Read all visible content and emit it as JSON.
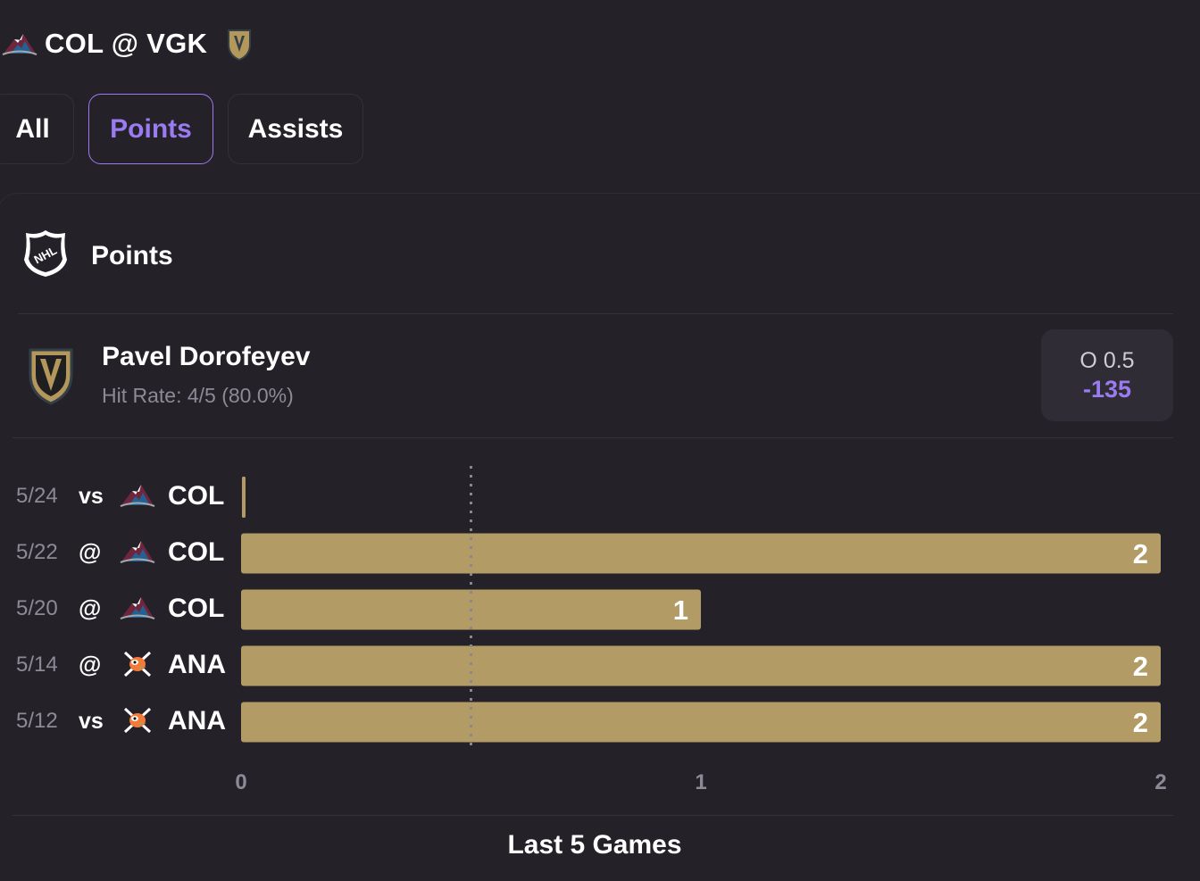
{
  "header": {
    "away_team_icon": "avalanche-logo-icon",
    "matchup": "COL @ VGK",
    "home_team_icon": "golden-knights-logo-icon"
  },
  "tabs": [
    {
      "label": "All",
      "active": false
    },
    {
      "label": "Points",
      "active": true
    },
    {
      "label": "Assists",
      "active": false
    }
  ],
  "section": {
    "league_icon": "nhl-shield-icon",
    "title": "Points"
  },
  "player": {
    "team_icon": "golden-knights-logo-icon",
    "name": "Pavel Dorofeyev",
    "hit_rate": "Hit Rate: 4/5 (80.0%)",
    "odds_line": "O 0.5",
    "odds_price": "-135"
  },
  "games": [
    {
      "date": "5/24",
      "location": "vs",
      "opponent": "COL",
      "opponent_icon": "avalanche-logo-icon"
    },
    {
      "date": "5/22",
      "location": "@",
      "opponent": "COL",
      "opponent_icon": "avalanche-logo-icon"
    },
    {
      "date": "5/20",
      "location": "@",
      "opponent": "COL",
      "opponent_icon": "avalanche-logo-icon"
    },
    {
      "date": "5/14",
      "location": "@",
      "opponent": "ANA",
      "opponent_icon": "ducks-logo-icon"
    },
    {
      "date": "5/12",
      "location": "vs",
      "opponent": "ANA",
      "opponent_icon": "ducks-logo-icon"
    }
  ],
  "chart_data": {
    "type": "bar",
    "orientation": "horizontal",
    "categories": [
      "5/24",
      "5/22",
      "5/20",
      "5/14",
      "5/12"
    ],
    "values": [
      0,
      2,
      1,
      2,
      2
    ],
    "data_labels": [
      "",
      "2",
      "1",
      "2",
      "2"
    ],
    "x_ticks": [
      "0",
      "1",
      "2"
    ],
    "xlim": [
      0,
      2
    ],
    "threshold_line": 0.5,
    "bar_color": "#b39b65",
    "xlabel": "Last 5 Games"
  },
  "colors": {
    "accent": "#9b7cf0",
    "bar": "#b39b65",
    "background": "#242129"
  }
}
